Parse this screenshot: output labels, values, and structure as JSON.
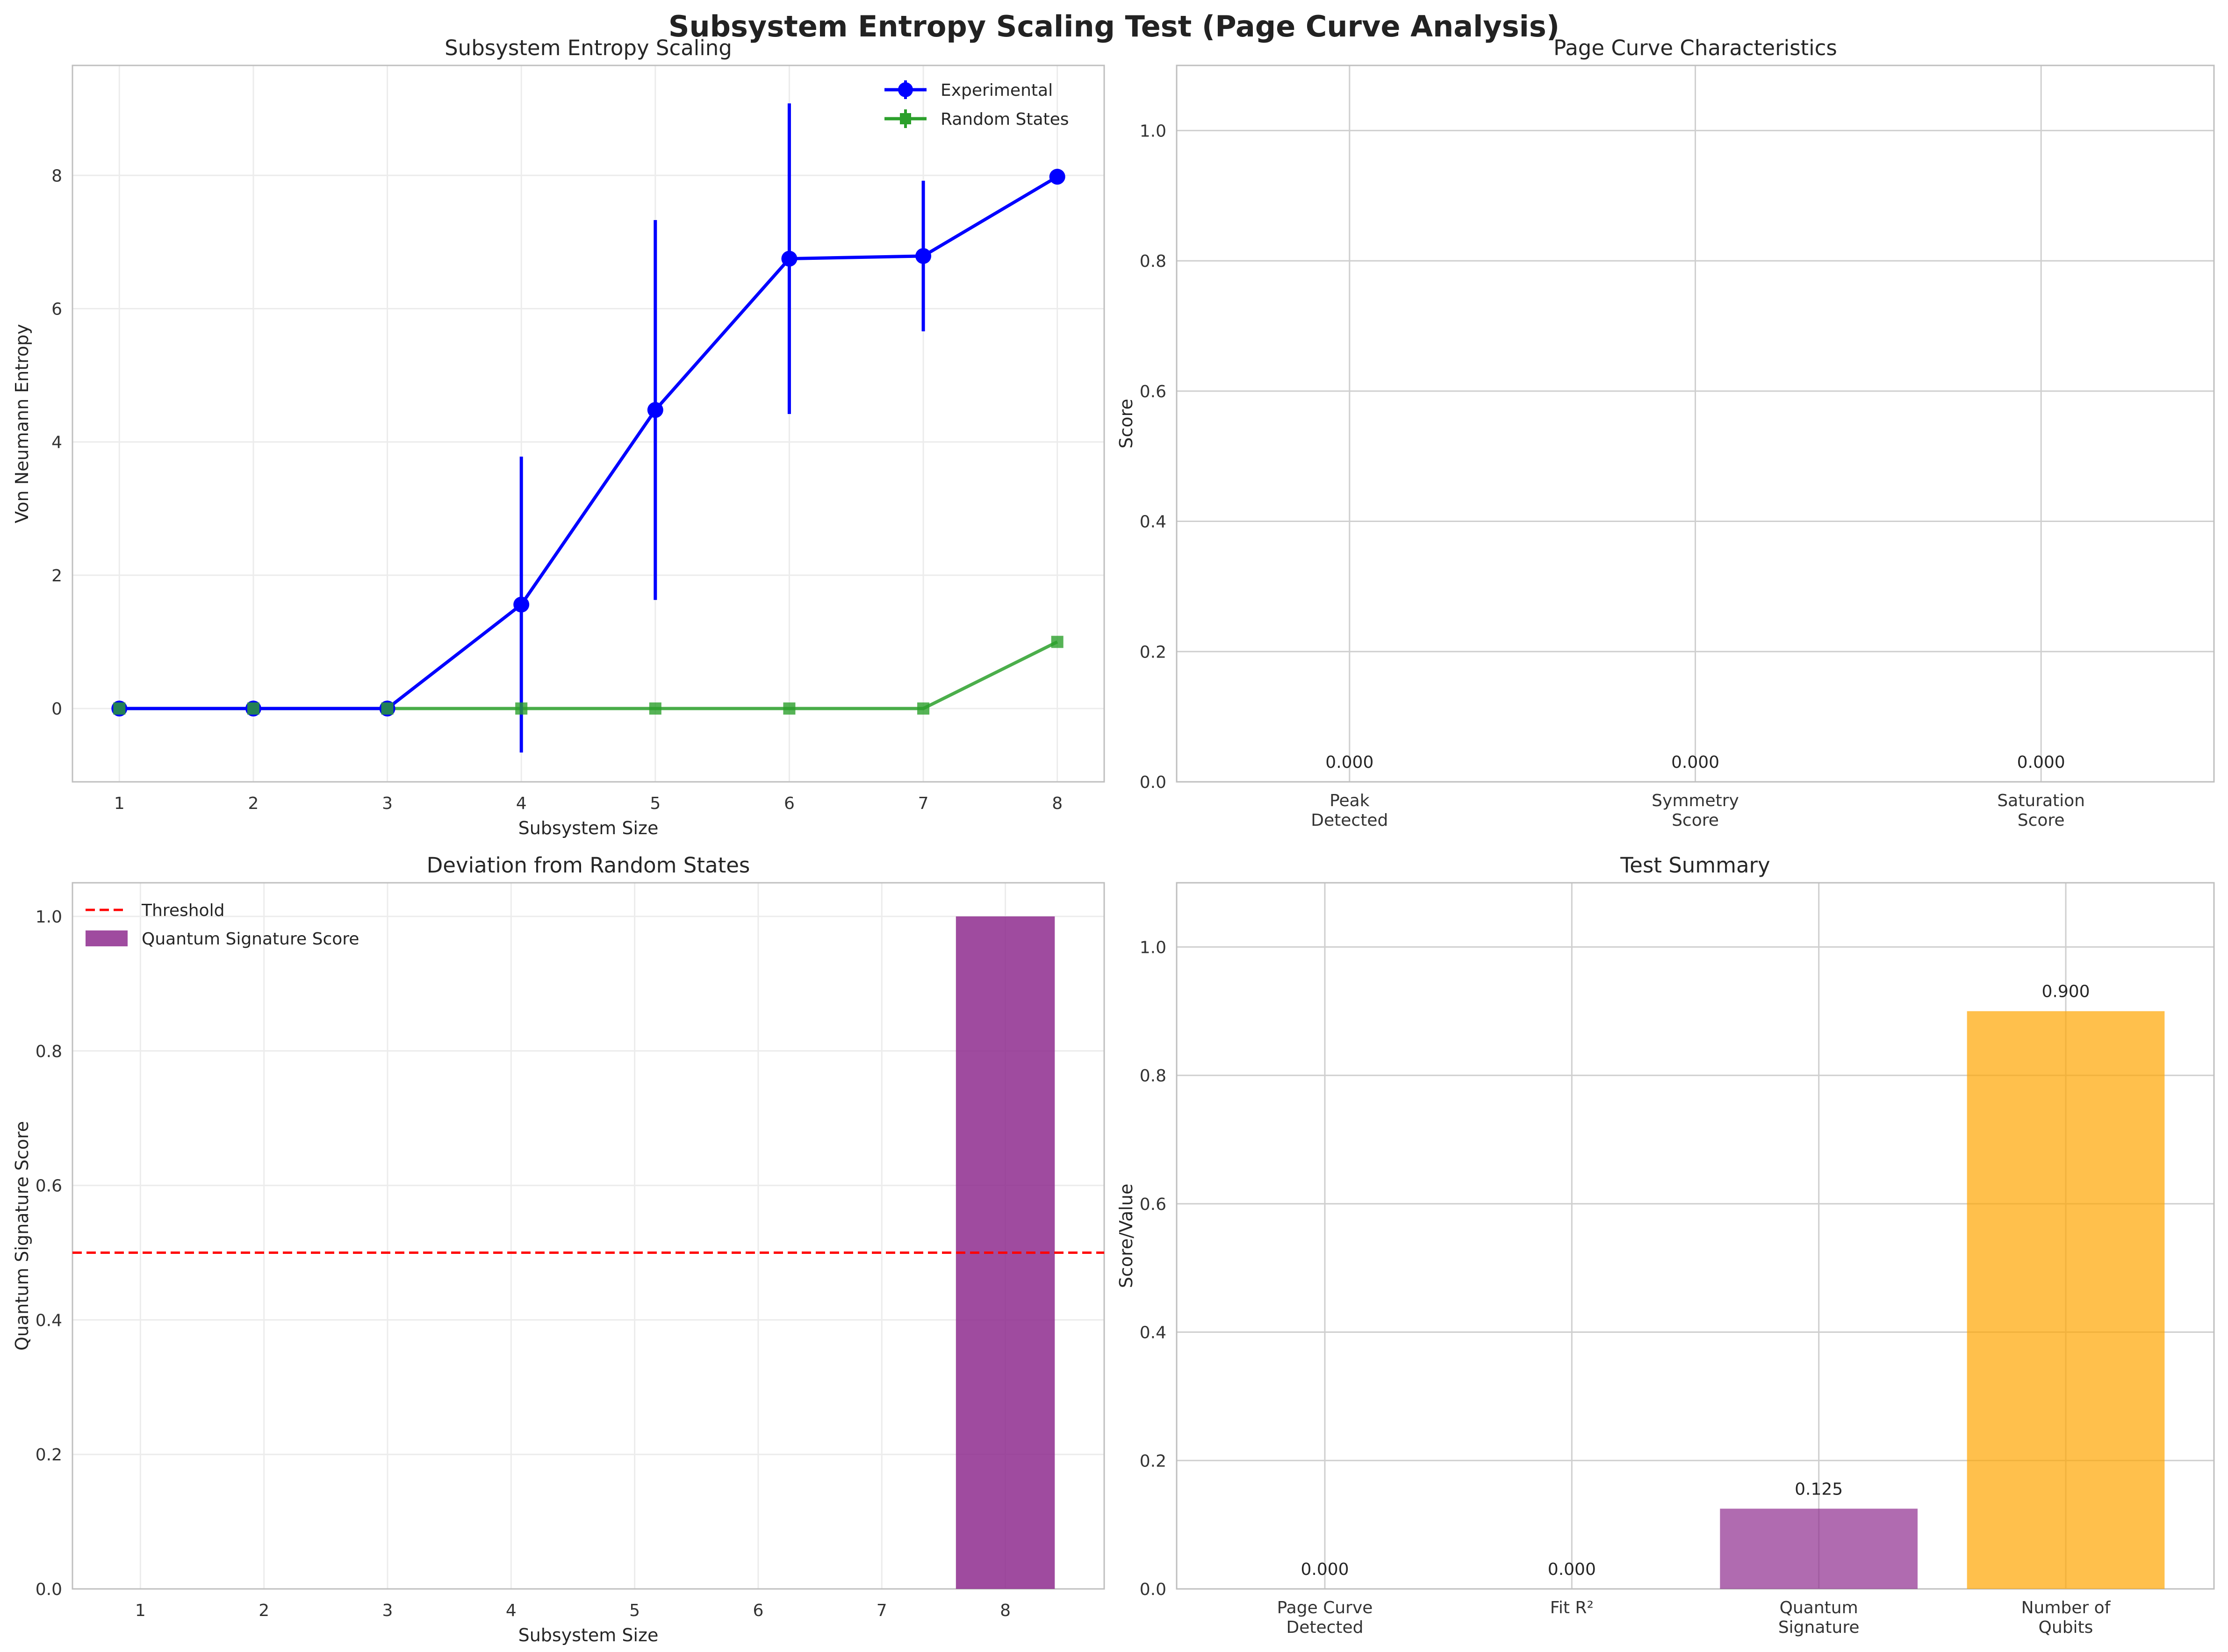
{
  "figure": {
    "title": "Subsystem Entropy Scaling Test (Page Curve Analysis)"
  },
  "chart_data": [
    {
      "id": "entropy",
      "type": "line",
      "title": "Subsystem Entropy Scaling",
      "xlabel": "Subsystem Size",
      "ylabel": "Von Neumann Entropy",
      "x": [
        1,
        2,
        3,
        4,
        5,
        6,
        7,
        8
      ],
      "xlim": [
        0.65,
        8.35
      ],
      "ylim": [
        -1.1,
        9.65
      ],
      "xticks": [
        1,
        2,
        3,
        4,
        5,
        6,
        7,
        8
      ],
      "yticks": [
        0,
        2,
        4,
        6,
        8
      ],
      "grid": true,
      "legend_position": "top-right",
      "series": [
        {
          "name": "Experimental",
          "color": "#0000ff",
          "marker": "circle",
          "values": [
            0,
            0,
            0,
            1.56,
            4.48,
            6.75,
            6.79,
            7.98
          ],
          "error": [
            0,
            0,
            0,
            2.22,
            2.85,
            2.33,
            1.13,
            0
          ]
        },
        {
          "name": "Random States",
          "color": "#2ca02c",
          "marker": "square",
          "values": [
            0,
            0,
            0,
            0,
            0,
            0,
            0,
            1.0
          ]
        }
      ]
    },
    {
      "id": "page",
      "type": "bar",
      "title": "Page Curve Characteristics",
      "xlabel": "",
      "ylabel": "Score",
      "categories": [
        "Peak\nDetected",
        "Symmetry\nScore",
        "Saturation\nScore"
      ],
      "values": [
        0.0,
        0.0,
        0.0
      ],
      "value_labels": [
        "0.000",
        "0.000",
        "0.000"
      ],
      "ylim": [
        0,
        1.1
      ],
      "yticks": [
        0.0,
        0.2,
        0.4,
        0.6,
        0.8,
        1.0
      ],
      "grid": true
    },
    {
      "id": "deviation",
      "type": "bar",
      "title": "Deviation from Random States",
      "xlabel": "Subsystem Size",
      "ylabel": "Quantum Signature Score",
      "categories": [
        "1",
        "2",
        "3",
        "4",
        "5",
        "6",
        "7",
        "8"
      ],
      "values": [
        0,
        0,
        0,
        0,
        0,
        0,
        0,
        1.0
      ],
      "ylim": [
        0,
        1.05
      ],
      "yticks": [
        0.0,
        0.2,
        0.4,
        0.6,
        0.8,
        1.0
      ],
      "bar_color": "#8e2c8e",
      "threshold": {
        "name": "Threshold",
        "value": 0.5,
        "color": "#ff0000"
      },
      "series_name": "Quantum Signature Score",
      "legend_position": "top-left",
      "grid": true
    },
    {
      "id": "summary",
      "type": "bar",
      "title": "Test Summary",
      "xlabel": "",
      "ylabel": "Score/Value",
      "categories": [
        "Page Curve\nDetected",
        "Fit R²",
        "Quantum\nSignature",
        "Number of\nQubits"
      ],
      "values": [
        0.0,
        0.0,
        0.125,
        0.9
      ],
      "value_labels": [
        "0.000",
        "0.000",
        "0.125",
        "0.900"
      ],
      "colors": [
        "#008000",
        "#0000ff",
        "#8e2c8e",
        "#ffa500"
      ],
      "ylim": [
        0,
        1.1
      ],
      "yticks": [
        0.0,
        0.2,
        0.4,
        0.6,
        0.8,
        1.0
      ],
      "grid": true
    }
  ]
}
